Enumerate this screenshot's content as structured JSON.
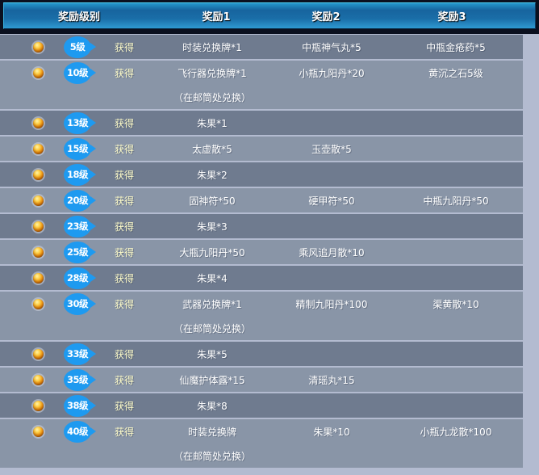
{
  "header": {
    "columns": [
      "奖励级别",
      "奖励1",
      "奖励2",
      "奖励3"
    ]
  },
  "table": {
    "rows": [
      {
        "level": "5级",
        "action": "获得",
        "reward1": "时装兑换牌*1",
        "reward2": "中瓶神气丸*5",
        "reward3": "中瓶金疮药*5",
        "note": ""
      },
      {
        "level": "10级",
        "action": "获得",
        "reward1": "飞行器兑换牌*1",
        "reward2": "小瓶九阳丹*20",
        "reward3": "黄沉之石5级",
        "note": "（在邮筒处兑换）"
      },
      {
        "level": "13级",
        "action": "获得",
        "reward1": "朱果*1",
        "reward2": "",
        "reward3": "",
        "note": ""
      },
      {
        "level": "15级",
        "action": "获得",
        "reward1": "太虚散*5",
        "reward2": "玉壶散*5",
        "reward3": "",
        "note": ""
      },
      {
        "level": "18级",
        "action": "获得",
        "reward1": "朱果*2",
        "reward2": "",
        "reward3": "",
        "note": ""
      },
      {
        "level": "20级",
        "action": "获得",
        "reward1": "固神符*50",
        "reward2": "硬甲符*50",
        "reward3": "中瓶九阳丹*50",
        "note": ""
      },
      {
        "level": "23级",
        "action": "获得",
        "reward1": "朱果*3",
        "reward2": "",
        "reward3": "",
        "note": ""
      },
      {
        "level": "25级",
        "action": "获得",
        "reward1": "大瓶九阳丹*50",
        "reward2": "乘风追月散*10",
        "reward3": "",
        "note": ""
      },
      {
        "level": "28级",
        "action": "获得",
        "reward1": "朱果*4",
        "reward2": "",
        "reward3": "",
        "note": ""
      },
      {
        "level": "30级",
        "action": "获得",
        "reward1": "武器兑换牌*1",
        "reward2": "精制九阳丹*100",
        "reward3": "渠黄散*10",
        "note": "（在邮筒处兑换）"
      },
      {
        "level": "33级",
        "action": "获得",
        "reward1": "朱果*5",
        "reward2": "",
        "reward3": "",
        "note": ""
      },
      {
        "level": "35级",
        "action": "获得",
        "reward1": "仙魔护体露*15",
        "reward2": "清瑶丸*15",
        "reward3": "",
        "note": ""
      },
      {
        "level": "38级",
        "action": "获得",
        "reward1": "朱果*8",
        "reward2": "",
        "reward3": "",
        "note": ""
      },
      {
        "level": "40级",
        "action": "获得",
        "reward1": "时装兑换牌",
        "reward2": "朱果*10",
        "reward3": "小瓶九龙散*100",
        "note": "（在邮筒处兑换）"
      }
    ]
  },
  "colors": {
    "header_gradient_top": "#2596cc",
    "header_gradient_mid": "#17649e",
    "header_gradient_bottom": "#2f9ad2",
    "header_frame": "#0b101f",
    "row_dark": "#6f7b8f",
    "row_light": "#8995a7",
    "page_background": "#b3bbd0",
    "badge_blue": "#1e9af0",
    "obtain_text": "#fffdca",
    "reward_text": "#ffffff",
    "orb_gold": "#f0920e"
  }
}
